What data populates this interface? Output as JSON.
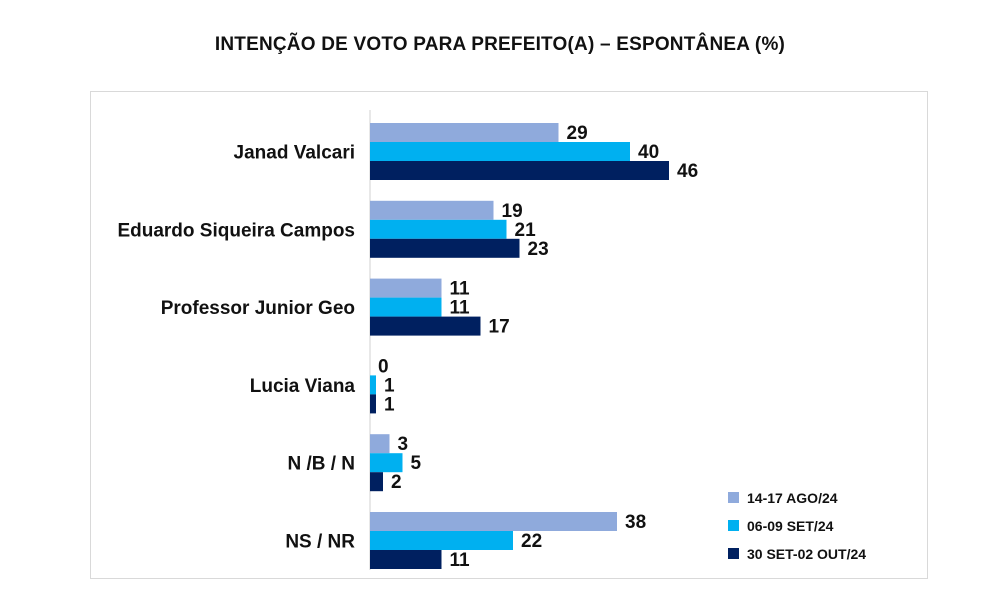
{
  "chart_data": {
    "type": "bar",
    "orientation": "horizontal",
    "title": "INTENÇÃO DE VOTO PARA PREFEITO(A) – ESPONTÂNEA (%)",
    "categories": [
      "Janad Valcari",
      "Eduardo Siqueira Campos",
      "Professor Junior Geo",
      "Lucia Viana",
      "N /B / N",
      "NS / NR"
    ],
    "series": [
      {
        "name": "14-17 AGO/24",
        "color": "#8faadc",
        "values": [
          29,
          19,
          11,
          0,
          3,
          38
        ]
      },
      {
        "name": "06-09 SET/24",
        "color": "#00b0f0",
        "values": [
          40,
          21,
          11,
          1,
          5,
          22
        ]
      },
      {
        "name": "30 SET-02 OUT/24",
        "color": "#002060",
        "values": [
          46,
          23,
          17,
          1,
          2,
          11
        ]
      }
    ],
    "xlim": [
      0,
      60
    ],
    "grid": false,
    "legend_position": "bottom-right",
    "data_labels": true
  }
}
